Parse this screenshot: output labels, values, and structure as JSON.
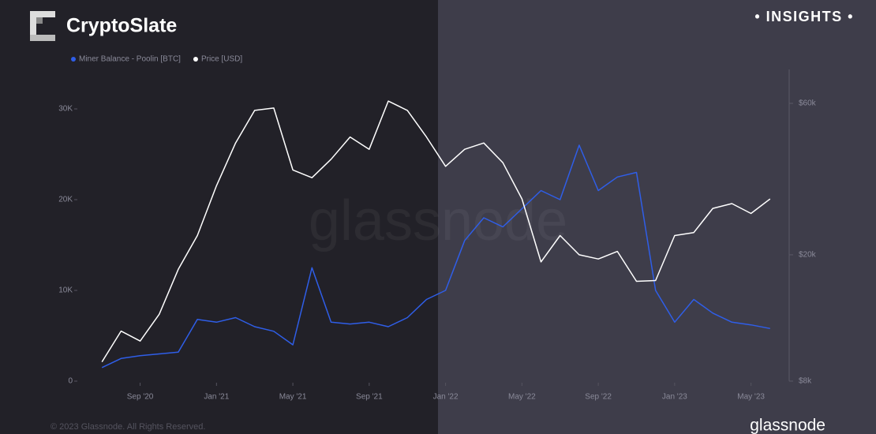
{
  "chart_data": {
    "type": "line",
    "brand": "CryptoSlate",
    "badge": "• INSIGHTS •",
    "watermark": "glassnode",
    "copyright": "© 2023 Glassnode. All Rights Reserved.",
    "footer_brand": "glassnode",
    "x": [
      "2020-07",
      "2020-08",
      "2020-09",
      "2020-10",
      "2020-11",
      "2020-12",
      "2021-01",
      "2021-02",
      "2021-03",
      "2021-04",
      "2021-05",
      "2021-06",
      "2021-07",
      "2021-08",
      "2021-09",
      "2021-10",
      "2021-11",
      "2021-12",
      "2022-01",
      "2022-02",
      "2022-03",
      "2022-04",
      "2022-05",
      "2022-06",
      "2022-07",
      "2022-08",
      "2022-09",
      "2022-10",
      "2022-11",
      "2022-12",
      "2023-01",
      "2023-02",
      "2023-03",
      "2023-04",
      "2023-05",
      "2023-06"
    ],
    "xlim": [
      "2020-06",
      "2023-07"
    ],
    "xticks": [
      {
        "value": "2020-09",
        "label": "Sep '20"
      },
      {
        "value": "2021-01",
        "label": "Jan '21"
      },
      {
        "value": "2021-05",
        "label": "May '21"
      },
      {
        "value": "2021-09",
        "label": "Sep '21"
      },
      {
        "value": "2022-01",
        "label": "Jan '22"
      },
      {
        "value": "2022-05",
        "label": "May '22"
      },
      {
        "value": "2022-09",
        "label": "Sep '22"
      },
      {
        "value": "2023-01",
        "label": "Jan '23"
      },
      {
        "value": "2023-05",
        "label": "May '23"
      }
    ],
    "ylim": [
      0,
      34000
    ],
    "yticks": [
      0,
      {
        "value": 10000,
        "label": "10K"
      },
      {
        "value": 20000,
        "label": "20K"
      },
      {
        "value": 30000,
        "label": "30K"
      }
    ],
    "y2lim": [
      8000,
      75000
    ],
    "y2_log": true,
    "y2ticks": [
      {
        "value": 8000,
        "label": "$8k"
      },
      {
        "value": 20000,
        "label": "$20k"
      },
      {
        "value": 60000,
        "label": "$60k"
      }
    ],
    "series": [
      {
        "name": "Miner Balance - Poolin [BTC]",
        "color": "#2f5ee8",
        "axis": "y",
        "values": [
          1500,
          2500,
          2800,
          3000,
          3200,
          6800,
          6500,
          7000,
          6000,
          5500,
          4000,
          12500,
          6500,
          6300,
          6500,
          6000,
          7000,
          9000,
          10000,
          15500,
          18000,
          17000,
          19000,
          21000,
          20000,
          26000,
          21000,
          22500,
          23000,
          10000,
          6500,
          9000,
          7500,
          6500,
          6200,
          5800
        ]
      },
      {
        "name": "Price [USD]",
        "color": "#ffffff",
        "axis": "y2",
        "values": [
          9200,
          11500,
          10700,
          13000,
          18000,
          23000,
          33000,
          45000,
          57000,
          58000,
          37000,
          35000,
          40000,
          47000,
          43000,
          61000,
          57000,
          47000,
          38000,
          43000,
          45000,
          39000,
          30000,
          19000,
          23000,
          20000,
          19400,
          20500,
          16500,
          16600,
          23000,
          23500,
          28000,
          29000,
          27000,
          30000
        ]
      }
    ]
  }
}
